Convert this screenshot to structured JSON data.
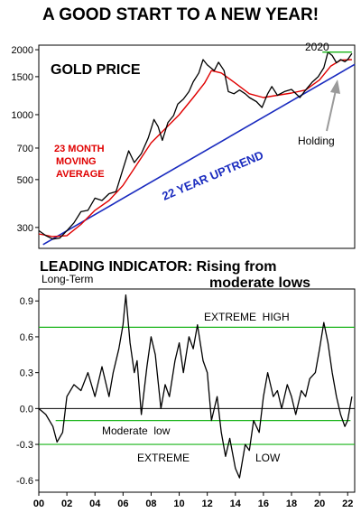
{
  "title": "A GOOD START TO A NEW YEAR!",
  "subtitle_line1": "LEADING INDICATOR: Rising from",
  "subtitle_line2": "moderate lows",
  "colors": {
    "price": "#000000",
    "moving_average": "#e00000",
    "trendline": "#1a2bbf",
    "levels": "#19b419",
    "zero_line": "#000000"
  },
  "chart_data": [
    {
      "type": "line",
      "title": "GOLD PRICE",
      "y_scale": "log",
      "ylim": [
        240,
        2100
      ],
      "y_ticks": [
        300,
        500,
        700,
        1000,
        1500,
        2000
      ],
      "x_range": [
        2000,
        2022.5
      ],
      "annotations": {
        "ma_label": [
          "23 MONTH",
          "MOVING",
          "AVERAGE"
        ],
        "trend_label": "22 YEAR UPTREND",
        "peak_label": "2020",
        "holding_label": "Holding"
      },
      "series": [
        {
          "name": "GOLD PRICE",
          "x": [
            2000,
            2000.5,
            2001,
            2001.5,
            2002,
            2002.5,
            2003,
            2003.5,
            2004,
            2004.5,
            2005,
            2005.5,
            2006,
            2006.4,
            2006.8,
            2007.3,
            2007.8,
            2008.2,
            2008.5,
            2008.8,
            2009.2,
            2009.6,
            2009.9,
            2010.3,
            2010.7,
            2011,
            2011.4,
            2011.7,
            2012,
            2012.5,
            2012.8,
            2013.2,
            2013.5,
            2013.9,
            2014.3,
            2014.7,
            2015,
            2015.5,
            2015.9,
            2016.3,
            2016.6,
            2017,
            2017.5,
            2018,
            2018.6,
            2019,
            2019.5,
            2019.9,
            2020.3,
            2020.6,
            2020.9,
            2021.2,
            2021.5,
            2021.8,
            2022,
            2022.3
          ],
          "values": [
            290,
            275,
            265,
            268,
            290,
            315,
            355,
            360,
            410,
            400,
            430,
            440,
            560,
            680,
            600,
            660,
            780,
            950,
            880,
            760,
            920,
            990,
            1120,
            1180,
            1280,
            1420,
            1560,
            1800,
            1700,
            1600,
            1750,
            1600,
            1280,
            1250,
            1300,
            1250,
            1200,
            1150,
            1080,
            1250,
            1350,
            1230,
            1280,
            1310,
            1200,
            1300,
            1420,
            1500,
            1650,
            1950,
            1880,
            1740,
            1800,
            1760,
            1800,
            1920
          ]
        },
        {
          "name": "23 MONTH MOVING AVERAGE",
          "x": [
            2000,
            2001,
            2002,
            2003,
            2004,
            2005,
            2006,
            2007,
            2008,
            2009,
            2010,
            2011,
            2011.8,
            2012.3,
            2013,
            2014,
            2015,
            2016,
            2017,
            2018,
            2019,
            2020,
            2020.8,
            2021.5,
            2022.3
          ],
          "values": [
            280,
            272,
            275,
            310,
            360,
            400,
            470,
            590,
            740,
            860,
            1000,
            1200,
            1400,
            1600,
            1560,
            1400,
            1250,
            1200,
            1230,
            1260,
            1300,
            1450,
            1680,
            1790,
            1800
          ]
        },
        {
          "name": "22 YEAR UPTREND",
          "x": [
            2000.3,
            2022.5
          ],
          "values": [
            250,
            1710
          ]
        }
      ]
    },
    {
      "type": "line",
      "title": "LEADING INDICATOR",
      "ylabel": "Long-Term",
      "ylim": [
        -0.7,
        1.0
      ],
      "y_ticks": [
        0.9,
        0.6,
        0.3,
        0.0,
        -0.3,
        -0.6
      ],
      "y_tick_labels": [
        "0.9",
        "0.6",
        "0.3",
        "0.0",
        "-0.3",
        "-0.6"
      ],
      "x_tick_labels": [
        "00",
        "02",
        "04",
        "06",
        "08",
        "10",
        "12",
        "14",
        "16",
        "18",
        "20",
        "22"
      ],
      "x_range": [
        2000,
        2022.5
      ],
      "levels": [
        {
          "label": "EXTREME  HIGH",
          "value": 0.68
        },
        {
          "label": "Moderate  low",
          "value": -0.1
        },
        {
          "label": "EXTREME",
          "value": -0.3
        },
        {
          "label": "LOW",
          "value": -0.3
        }
      ],
      "series": [
        {
          "name": "Leading Indicator",
          "x": [
            2000,
            2000.5,
            2001,
            2001.3,
            2001.7,
            2002,
            2002.5,
            2003,
            2003.5,
            2004,
            2004.5,
            2005,
            2005.3,
            2005.7,
            2006,
            2006.2,
            2006.5,
            2006.8,
            2007,
            2007.3,
            2007.7,
            2008,
            2008.3,
            2008.7,
            2009,
            2009.3,
            2009.7,
            2010,
            2010.3,
            2010.7,
            2011,
            2011.3,
            2011.7,
            2012,
            2012.3,
            2012.7,
            2013,
            2013.3,
            2013.6,
            2014,
            2014.3,
            2014.7,
            2015,
            2015.3,
            2015.7,
            2016,
            2016.3,
            2016.7,
            2017,
            2017.3,
            2017.7,
            2018,
            2018.3,
            2018.7,
            2019,
            2019.3,
            2019.7,
            2020,
            2020.3,
            2020.6,
            2020.9,
            2021.2,
            2021.5,
            2021.8,
            2022,
            2022.3
          ],
          "values": [
            0.0,
            -0.05,
            -0.15,
            -0.28,
            -0.2,
            0.1,
            0.2,
            0.15,
            0.3,
            0.1,
            0.35,
            0.1,
            0.3,
            0.5,
            0.7,
            0.95,
            0.55,
            0.3,
            0.4,
            -0.05,
            0.35,
            0.6,
            0.45,
            0.0,
            0.2,
            0.1,
            0.4,
            0.55,
            0.3,
            0.6,
            0.5,
            0.7,
            0.4,
            0.3,
            -0.1,
            0.1,
            -0.2,
            -0.4,
            -0.25,
            -0.5,
            -0.58,
            -0.3,
            -0.35,
            -0.1,
            -0.2,
            0.1,
            0.3,
            0.1,
            0.15,
            0.0,
            0.2,
            0.1,
            -0.05,
            0.15,
            0.1,
            0.25,
            0.3,
            0.5,
            0.72,
            0.55,
            0.3,
            0.1,
            -0.05,
            -0.15,
            -0.1,
            0.1
          ]
        }
      ]
    }
  ]
}
